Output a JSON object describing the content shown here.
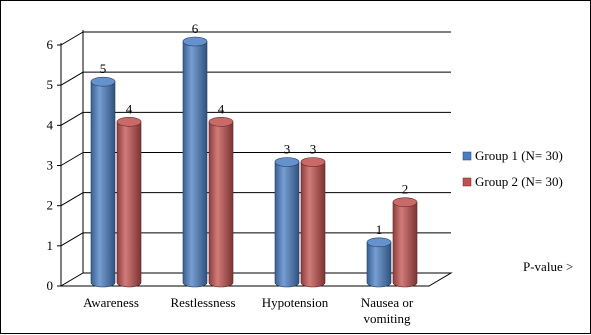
{
  "chart_data": {
    "type": "bar",
    "categories": [
      "Awareness",
      "Restlessness",
      "Hypotension",
      "Nausea or vomiting"
    ],
    "category_lines": [
      [
        "Awareness"
      ],
      [
        "Restlessness"
      ],
      [
        "Hypotension"
      ],
      [
        "Nausea or",
        "vomiting"
      ]
    ],
    "series": [
      {
        "name": "Group 1 (N= 30)",
        "values": [
          5,
          6,
          3,
          1
        ],
        "color": "#4a7ec4"
      },
      {
        "name": "Group 2 (N= 30)",
        "values": [
          4,
          4,
          3,
          2
        ],
        "color": "#c0504d"
      }
    ],
    "ylim": [
      0,
      6
    ],
    "yticks": [
      "0",
      "1",
      "2",
      "3",
      "4",
      "5",
      "6"
    ],
    "grid": true,
    "legend_position": "right",
    "three_d": true,
    "annotation": "P-value >"
  }
}
